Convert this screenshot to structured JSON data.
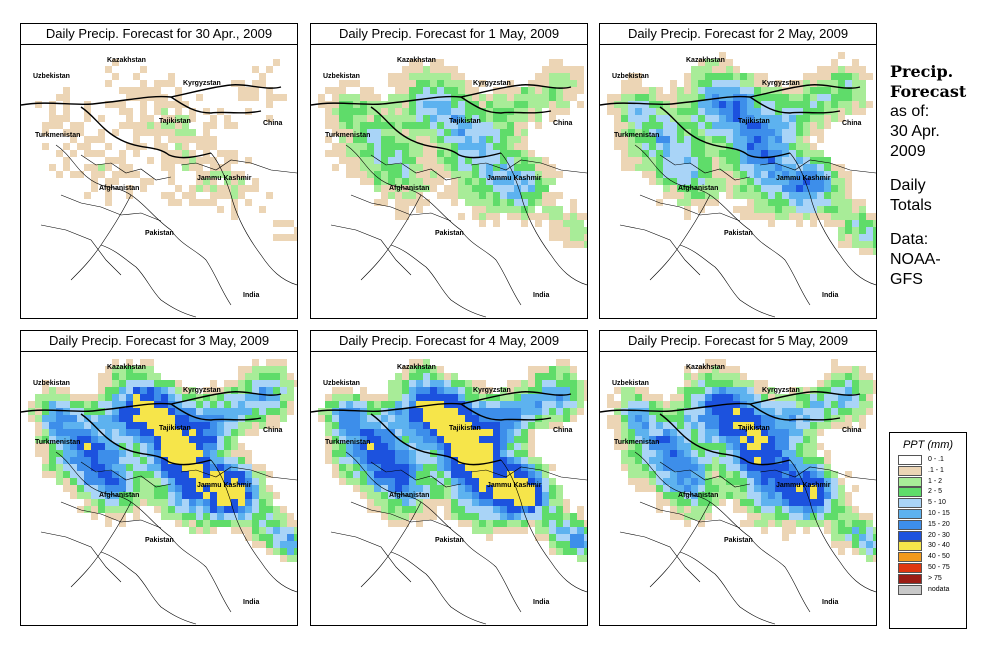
{
  "panels": [
    {
      "title": "Daily Precip. Forecast for  30 Apr., 2009",
      "intensity": 0.5
    },
    {
      "title": "Daily Precip. Forecast for  1 May, 2009",
      "intensity": 1.5
    },
    {
      "title": "Daily Precip. Forecast for  2 May, 2009",
      "intensity": 2.0
    },
    {
      "title": "Daily Precip. Forecast for  3 May, 2009",
      "intensity": 3.0
    },
    {
      "title": "Daily Precip. Forecast for  4 May, 2009",
      "intensity": 3.2
    },
    {
      "title": "Daily Precip. Forecast for  5 May, 2009",
      "intensity": 2.6
    }
  ],
  "map_labels": {
    "kazakhstan": "Kazakhstan",
    "uzbekistan": "Uzbekistan",
    "kyrgyzstan": "Kyrgyzstan",
    "tajikistan": "Tajikistan",
    "turkmenistan": "Turkmenistan",
    "china": "China",
    "afghanistan": "Afghanistan",
    "jammu_kashmir": "Jammu Kashmir",
    "pakistan": "Pakistan",
    "india": "India"
  },
  "sidebar": {
    "heading_line1": "Precip.",
    "heading_line2": "Forecast",
    "asof_line1": "as of:",
    "asof_line2": "30 Apr.",
    "asof_line3": "2009",
    "totals_line1": "Daily",
    "totals_line2": "Totals",
    "source_line1": "Data:",
    "source_line2": "NOAA-",
    "source_line3": "GFS"
  },
  "legend": {
    "title": "PPT (mm)",
    "items": [
      {
        "label": "0 - .1",
        "color": "#ffffff"
      },
      {
        "label": ".1 - 1",
        "color": "#ecd5b5"
      },
      {
        "label": "1 - 2",
        "color": "#a8ec98"
      },
      {
        "label": "2 - 5",
        "color": "#5fdc6a"
      },
      {
        "label": "5 - 10",
        "color": "#a9d4f7"
      },
      {
        "label": "10 - 15",
        "color": "#5db2ef"
      },
      {
        "label": "15 - 20",
        "color": "#3d8eea"
      },
      {
        "label": "20 - 30",
        "color": "#1c52de"
      },
      {
        "label": "30 - 40",
        "color": "#f6e54a"
      },
      {
        "label": "40 - 50",
        "color": "#f39a1b"
      },
      {
        "label": "50 - 75",
        "color": "#e0360f"
      },
      {
        "label": "> 75",
        "color": "#9b1c14"
      },
      {
        "label": "nodata",
        "color": "#c8c8c8"
      }
    ]
  }
}
